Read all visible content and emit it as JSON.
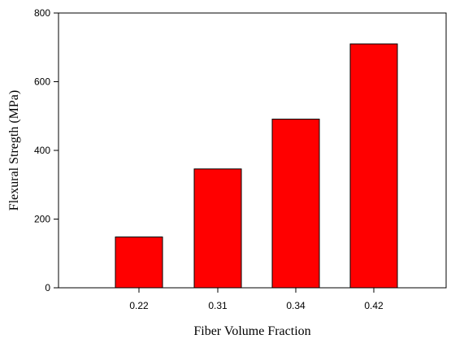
{
  "chart_data": {
    "type": "bar",
    "categories": [
      "0.22",
      "0.31",
      "0.34",
      "0.42"
    ],
    "values": [
      148,
      346,
      491,
      710
    ],
    "title": "",
    "xlabel": "Fiber Volume Fraction",
    "ylabel": "Flexural Stregth (MPa)",
    "ylim": [
      0,
      800
    ],
    "yticks": [
      "0",
      "200",
      "400",
      "600",
      "800"
    ],
    "bar_color": "#ff0000",
    "grid": false,
    "legend": "none"
  }
}
